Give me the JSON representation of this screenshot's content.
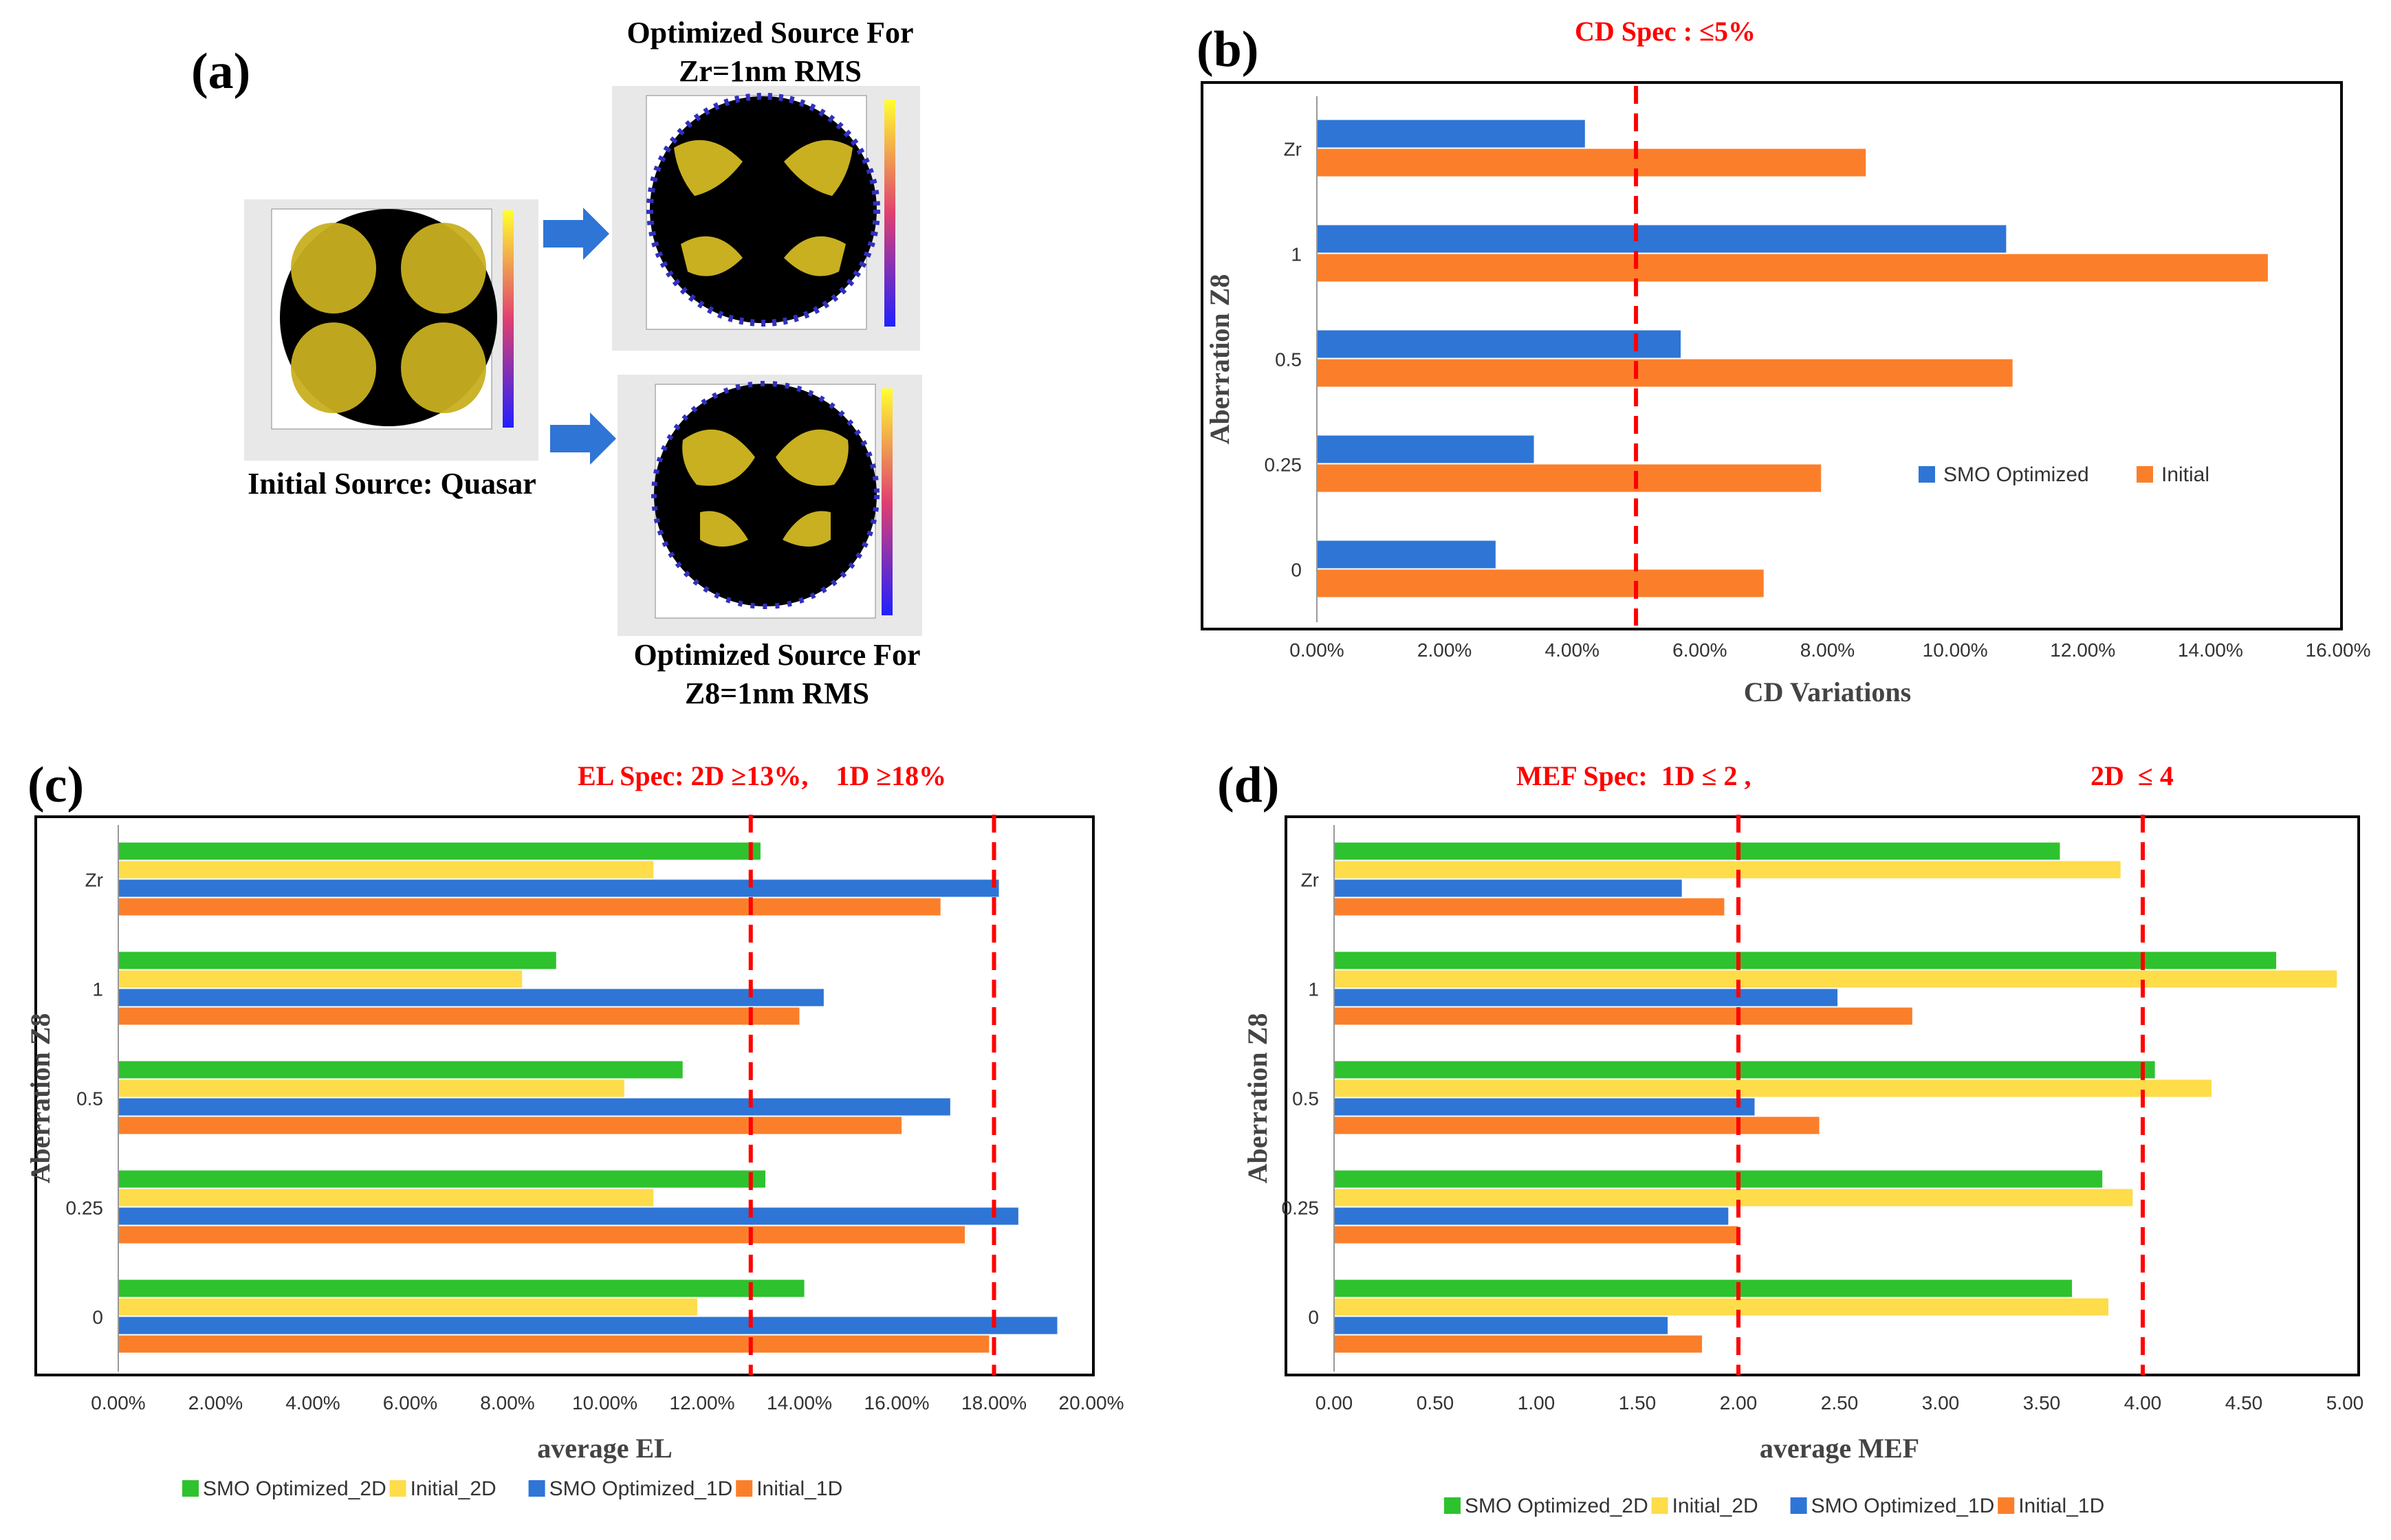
{
  "panel_a": {
    "label": "(a)",
    "initial_caption": "Initial Source: Quasar",
    "opt_zr_caption_line1": "Optimized Source For",
    "opt_zr_caption_line2": "Zr=1nm RMS",
    "opt_z8_caption_line1": "Optimized Source For",
    "opt_z8_caption_line2": "Z8=1nm RMS"
  },
  "panel_b": {
    "label": "(b)",
    "spec": "CD Spec : ≤5%"
  },
  "panel_c": {
    "label": "(c)",
    "spec": "EL Spec: 2D ≥13%,    1D ≥18%"
  },
  "panel_d": {
    "label": "(d)",
    "spec1": "MEF Spec:  1D ≤ 2 ,",
    "spec2": "2D  ≤ 4"
  },
  "colors": {
    "blue": "#2e75d6",
    "orange": "#fb7f2a",
    "green": "#2ec22e",
    "yellow": "#fedc4a",
    "red": "#ff0000"
  },
  "chart_data": [
    {
      "id": "b",
      "type": "bar",
      "orientation": "horizontal",
      "categories": [
        "Zr",
        "1",
        "0.5",
        "0.25",
        "0"
      ],
      "series": [
        {
          "name": "SMO Optimized",
          "color": "#2e75d6",
          "values": [
            4.2,
            10.8,
            5.7,
            3.4,
            2.8
          ]
        },
        {
          "name": "Initial",
          "color": "#fb7f2a",
          "values": [
            8.6,
            14.9,
            10.9,
            7.9,
            7.0
          ]
        }
      ],
      "xlim": [
        0,
        16
      ],
      "xticks": [
        "0.00%",
        "2.00%",
        "4.00%",
        "6.00%",
        "8.00%",
        "10.00%",
        "12.00%",
        "14.00%",
        "16.00%"
      ],
      "xlabel": "CD Variations",
      "ylabel": "Aberration Z8",
      "spec_lines": [
        5
      ],
      "legend_position": "inside-lower-right"
    },
    {
      "id": "c",
      "type": "bar",
      "orientation": "horizontal",
      "categories": [
        "Zr",
        "1",
        "0.5",
        "0.25",
        "0"
      ],
      "series": [
        {
          "name": "SMO Optimized_2D",
          "color": "#2ec22e",
          "values": [
            13.2,
            9.0,
            11.6,
            13.3,
            14.1
          ]
        },
        {
          "name": "Initial_2D",
          "color": "#fedc4a",
          "values": [
            11.0,
            8.3,
            10.4,
            11.0,
            11.9
          ]
        },
        {
          "name": "SMO Optimized_1D",
          "color": "#2e75d6",
          "values": [
            18.1,
            14.5,
            17.1,
            18.5,
            19.3
          ]
        },
        {
          "name": "Initial_1D",
          "color": "#fb7f2a",
          "values": [
            16.9,
            14.0,
            16.1,
            17.4,
            17.9
          ]
        }
      ],
      "xlim": [
        0,
        20
      ],
      "xticks": [
        "0.00%",
        "2.00%",
        "4.00%",
        "6.00%",
        "8.00%",
        "10.00%",
        "12.00%",
        "14.00%",
        "16.00%",
        "18.00%",
        "20.00%"
      ],
      "xlabel": "average EL",
      "ylabel": "Aberration Z8",
      "spec_lines": [
        13,
        18
      ],
      "legend_position": "bottom"
    },
    {
      "id": "d",
      "type": "bar",
      "orientation": "horizontal",
      "categories": [
        "Zr",
        "1",
        "0.5",
        "0.25",
        "0"
      ],
      "series": [
        {
          "name": "SMO Optimized_2D",
          "color": "#2ec22e",
          "values": [
            3.59,
            4.66,
            4.06,
            3.8,
            3.65
          ]
        },
        {
          "name": "Initial_2D",
          "color": "#fedc4a",
          "values": [
            3.89,
            4.96,
            4.34,
            3.95,
            3.83
          ]
        },
        {
          "name": "SMO Optimized_1D",
          "color": "#2e75d6",
          "values": [
            1.72,
            2.49,
            2.08,
            1.95,
            1.65
          ]
        },
        {
          "name": "Initial_1D",
          "color": "#fb7f2a",
          "values": [
            1.93,
            2.86,
            2.4,
            2.0,
            1.82
          ]
        }
      ],
      "xlim": [
        0,
        5
      ],
      "xticks": [
        "0.00",
        "0.50",
        "1.00",
        "1.50",
        "2.00",
        "2.50",
        "3.00",
        "3.50",
        "4.00",
        "4.50",
        "5.00"
      ],
      "xlabel": "average MEF",
      "ylabel": "Aberration Z8",
      "spec_lines": [
        2,
        4
      ],
      "legend_position": "bottom"
    }
  ]
}
